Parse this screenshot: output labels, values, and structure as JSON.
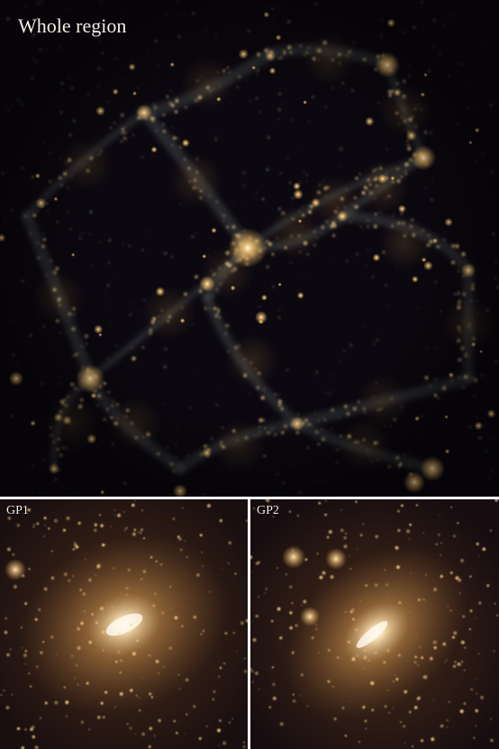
{
  "panels": {
    "whole": {
      "label": "Whole region"
    },
    "gp1": {
      "label": "GP1"
    },
    "gp2": {
      "label": "GP2"
    }
  },
  "colors": {
    "background": "#0c0810",
    "halo": "#e8b25a",
    "core": "#fff6e6",
    "filament": "#6f7a78",
    "divider": "#ffffff"
  }
}
